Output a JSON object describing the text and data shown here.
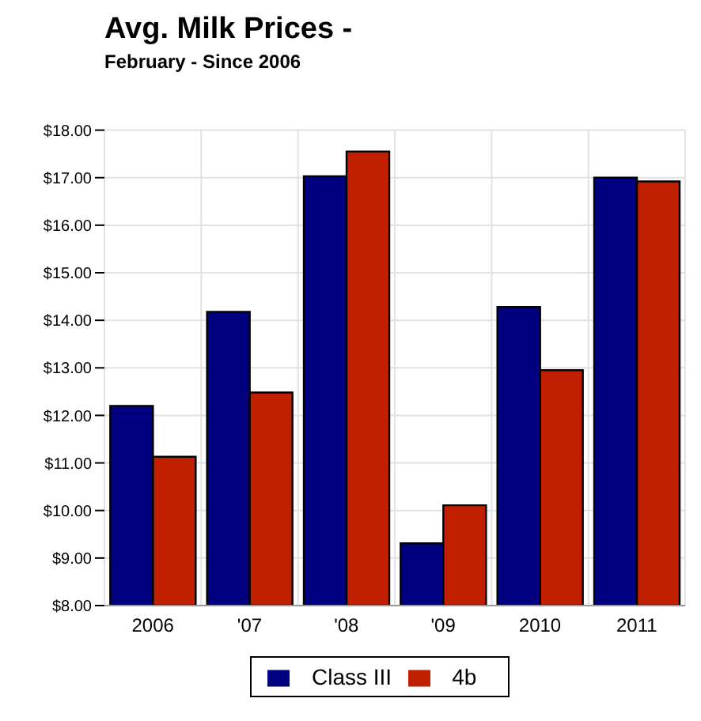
{
  "chart_data": {
    "type": "bar",
    "title": "Avg. Milk Prices -",
    "subtitle": "February - Since 2006",
    "categories": [
      "2006",
      "'07",
      "'08",
      "'09",
      "2010",
      "2011"
    ],
    "series": [
      {
        "name": "Class III",
        "color": "#000080",
        "values": [
          12.2,
          14.18,
          17.03,
          9.31,
          14.28,
          17.0
        ]
      },
      {
        "name": "4b",
        "color": "#c02000",
        "values": [
          11.13,
          12.48,
          17.55,
          10.11,
          12.95,
          16.92
        ]
      }
    ],
    "ylim": [
      8,
      18
    ],
    "yticks": [
      {
        "value": 8,
        "label": "$8.00"
      },
      {
        "value": 9,
        "label": "$9.00"
      },
      {
        "value": 10,
        "label": "$10.00"
      },
      {
        "value": 11,
        "label": "$11.00"
      },
      {
        "value": 12,
        "label": "$12.00"
      },
      {
        "value": 13,
        "label": "$13.00"
      },
      {
        "value": 14,
        "label": "$14.00"
      },
      {
        "value": 15,
        "label": "$15.00"
      },
      {
        "value": 16,
        "label": "$16.00"
      },
      {
        "value": 17,
        "label": "$17.00"
      },
      {
        "value": 18,
        "label": "$18.00"
      }
    ],
    "grid": true,
    "legend": "bottom"
  }
}
